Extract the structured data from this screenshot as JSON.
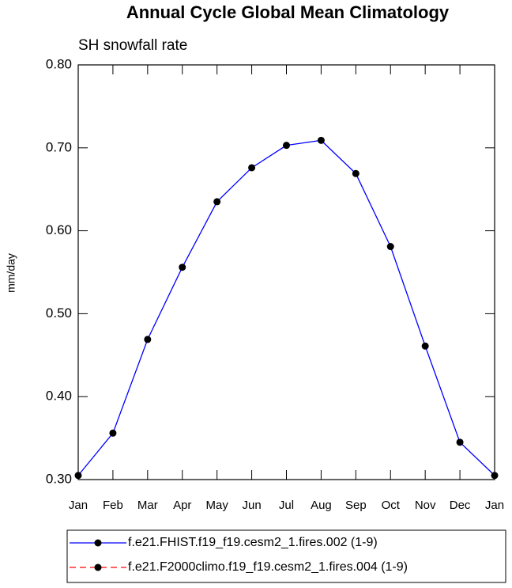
{
  "chart_data": {
    "type": "line",
    "title": "Annual Cycle Global Mean Climatology",
    "subtitle": "SH snowfall rate",
    "y_label": "mm/day",
    "categories": [
      "Jan",
      "Feb",
      "Mar",
      "Apr",
      "May",
      "Jun",
      "Jul",
      "Aug",
      "Sep",
      "Oct",
      "Nov",
      "Dec",
      "Jan"
    ],
    "series": [
      {
        "name": "f.e21.FHIST.f19_f19.cesm2_1.fires.002 (1-9)",
        "color": "#0000ff",
        "marker_color": "#000000",
        "dashed": false,
        "values": [
          0.305,
          0.356,
          0.469,
          0.556,
          0.635,
          0.676,
          0.703,
          0.709,
          0.669,
          0.581,
          0.461,
          0.345,
          0.305
        ]
      },
      {
        "name": "f.e21.F2000climo.f19_f19.cesm2_1.fires.004 (1-9)",
        "color": "#ff0000",
        "marker_color": "#000000",
        "dashed": true,
        "values": [
          null,
          null,
          null,
          null,
          null,
          null,
          null,
          null,
          null,
          null,
          null,
          null,
          null
        ]
      }
    ],
    "ylim": [
      0.3,
      0.8
    ],
    "yticks": [
      {
        "value": 0.3,
        "label": "0.30"
      },
      {
        "value": 0.4,
        "label": "0.40"
      },
      {
        "value": 0.5,
        "label": "0.50"
      },
      {
        "value": 0.6,
        "label": "0.60"
      },
      {
        "value": 0.7,
        "label": "0.70"
      },
      {
        "value": 0.8,
        "label": "0.80"
      }
    ],
    "grid": false
  }
}
